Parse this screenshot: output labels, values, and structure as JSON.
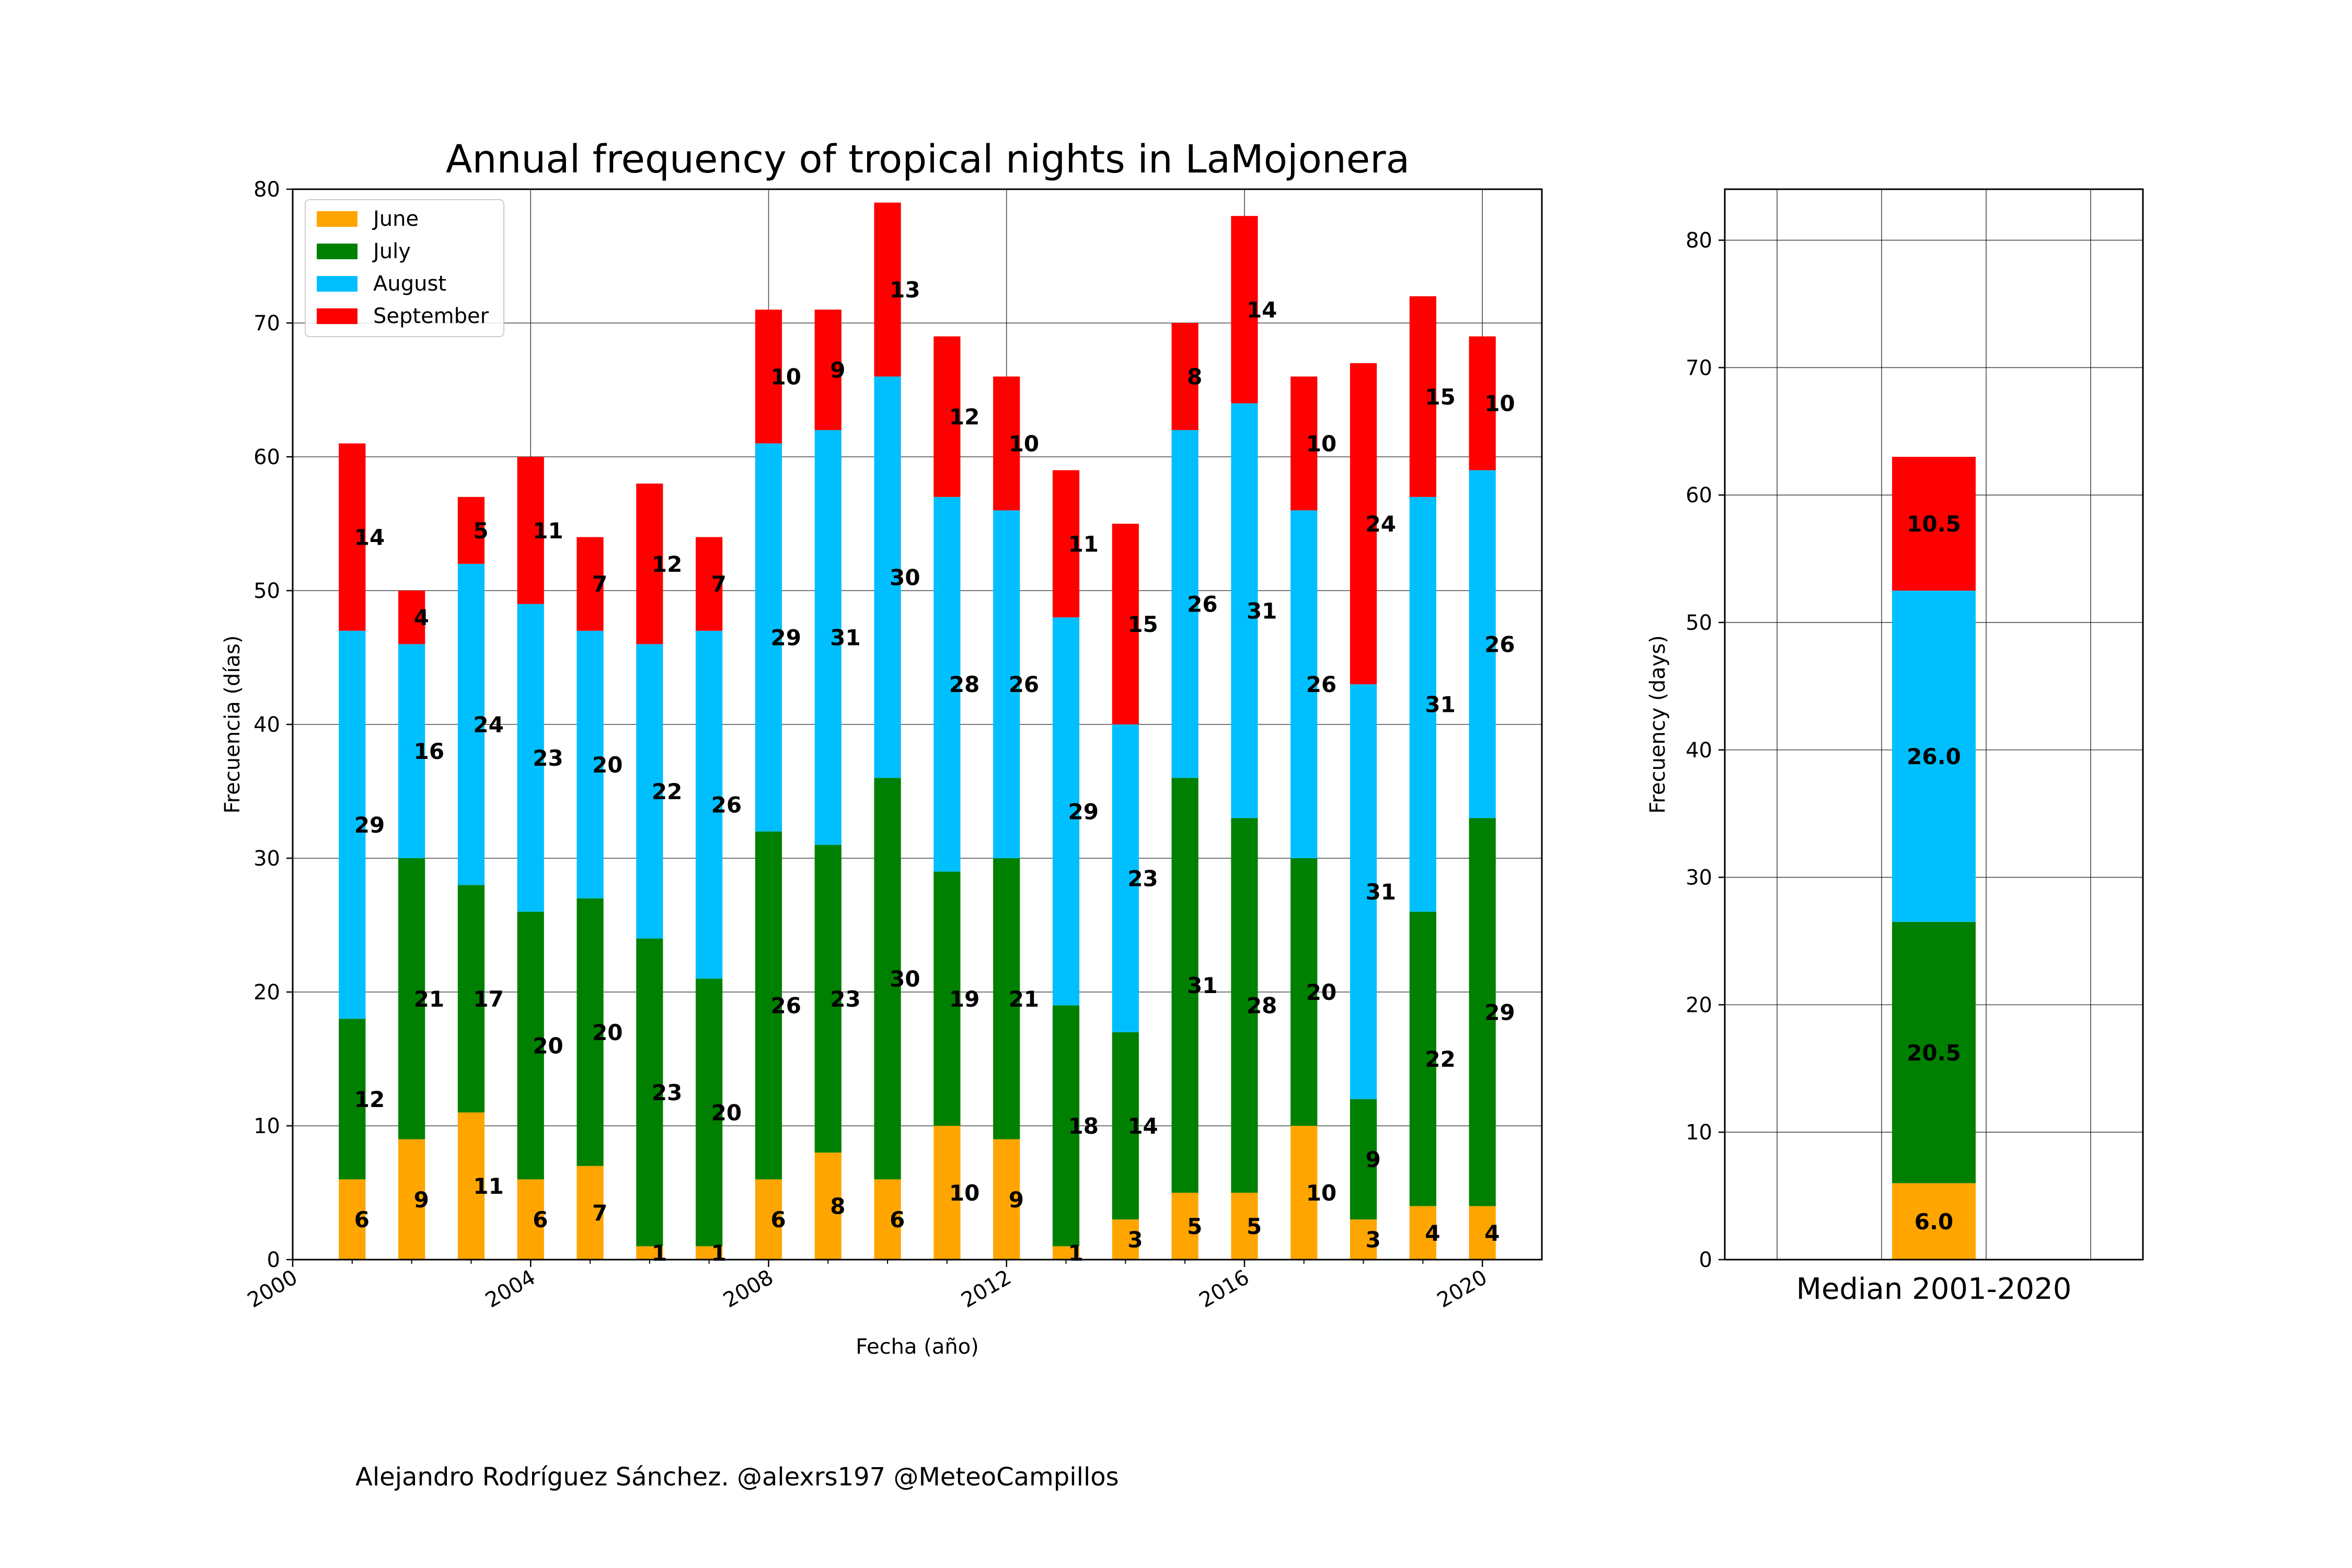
{
  "credit": "Alejandro Rodríguez Sánchez. @alexrs197 @MeteoCampillos",
  "colors": {
    "June": "#ffa500",
    "July": "#008000",
    "August": "#00bfff",
    "September": "#ff0000"
  },
  "chart_data": [
    {
      "type": "bar",
      "stacked": true,
      "title": "Annual frequency of tropical nights in LaMojonera",
      "xlabel": "Fecha (año)",
      "ylabel": "Frecuencia (días)",
      "xlim": [
        2000,
        2021
      ],
      "ylim": [
        0,
        80
      ],
      "xticks": [
        2000,
        2004,
        2008,
        2012,
        2016,
        2020
      ],
      "yticks": [
        0,
        10,
        20,
        30,
        40,
        50,
        60,
        70,
        80
      ],
      "grid": true,
      "legend": "upper-left",
      "x": [
        2001,
        2002,
        2003,
        2004,
        2005,
        2006,
        2007,
        2008,
        2009,
        2010,
        2011,
        2012,
        2013,
        2014,
        2015,
        2016,
        2017,
        2018,
        2019,
        2020
      ],
      "series": [
        {
          "name": "June",
          "values": [
            6,
            9,
            11,
            6,
            7,
            1,
            1,
            6,
            8,
            6,
            10,
            9,
            1,
            3,
            5,
            5,
            10,
            3,
            4,
            4
          ]
        },
        {
          "name": "July",
          "values": [
            12,
            21,
            17,
            20,
            20,
            23,
            20,
            26,
            23,
            30,
            19,
            21,
            18,
            14,
            31,
            28,
            20,
            9,
            22,
            29
          ]
        },
        {
          "name": "August",
          "values": [
            29,
            16,
            24,
            23,
            20,
            22,
            26,
            29,
            31,
            30,
            28,
            26,
            29,
            23,
            26,
            31,
            26,
            31,
            31,
            26
          ]
        },
        {
          "name": "September",
          "values": [
            14,
            4,
            5,
            11,
            7,
            12,
            7,
            10,
            9,
            13,
            12,
            10,
            11,
            15,
            8,
            14,
            10,
            24,
            15,
            10
          ]
        }
      ]
    },
    {
      "type": "bar",
      "stacked": true,
      "xlabel": "Median 2001-2020",
      "ylabel": "Frecuency (days)",
      "ylim": [
        0,
        84
      ],
      "yticks": [
        0,
        10,
        20,
        30,
        40,
        50,
        60,
        70,
        80
      ],
      "grid": true,
      "series": [
        {
          "name": "June",
          "values": [
            6.0
          ]
        },
        {
          "name": "July",
          "values": [
            20.5
          ]
        },
        {
          "name": "August",
          "values": [
            26.0
          ]
        },
        {
          "name": "September",
          "values": [
            10.5
          ]
        }
      ]
    }
  ]
}
